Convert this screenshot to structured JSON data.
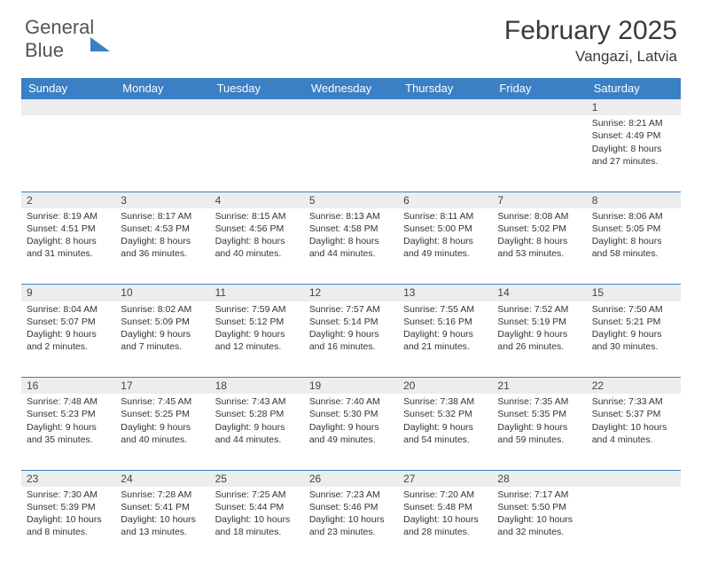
{
  "logo": {
    "word1": "General",
    "word2": "Blue"
  },
  "title": {
    "month": "February 2025",
    "location": "Vangazi, Latvia"
  },
  "weekdays": [
    "Sunday",
    "Monday",
    "Tuesday",
    "Wednesday",
    "Thursday",
    "Friday",
    "Saturday"
  ],
  "colors": {
    "header_bg": "#3b7fc4",
    "daynum_bg": "#ededed",
    "row_border": "#3b7fc4",
    "text": "#333333",
    "title_text": "#3a3a3a"
  },
  "fonts": {
    "title_size_pt": 22,
    "location_size_pt": 13,
    "weekday_size_pt": 10,
    "body_size_pt": 8
  },
  "weeks": [
    [
      null,
      null,
      null,
      null,
      null,
      null,
      {
        "n": "1",
        "sunrise": "Sunrise: 8:21 AM",
        "sunset": "Sunset: 4:49 PM",
        "day1": "Daylight: 8 hours",
        "day2": "and 27 minutes."
      }
    ],
    [
      {
        "n": "2",
        "sunrise": "Sunrise: 8:19 AM",
        "sunset": "Sunset: 4:51 PM",
        "day1": "Daylight: 8 hours",
        "day2": "and 31 minutes."
      },
      {
        "n": "3",
        "sunrise": "Sunrise: 8:17 AM",
        "sunset": "Sunset: 4:53 PM",
        "day1": "Daylight: 8 hours",
        "day2": "and 36 minutes."
      },
      {
        "n": "4",
        "sunrise": "Sunrise: 8:15 AM",
        "sunset": "Sunset: 4:56 PM",
        "day1": "Daylight: 8 hours",
        "day2": "and 40 minutes."
      },
      {
        "n": "5",
        "sunrise": "Sunrise: 8:13 AM",
        "sunset": "Sunset: 4:58 PM",
        "day1": "Daylight: 8 hours",
        "day2": "and 44 minutes."
      },
      {
        "n": "6",
        "sunrise": "Sunrise: 8:11 AM",
        "sunset": "Sunset: 5:00 PM",
        "day1": "Daylight: 8 hours",
        "day2": "and 49 minutes."
      },
      {
        "n": "7",
        "sunrise": "Sunrise: 8:08 AM",
        "sunset": "Sunset: 5:02 PM",
        "day1": "Daylight: 8 hours",
        "day2": "and 53 minutes."
      },
      {
        "n": "8",
        "sunrise": "Sunrise: 8:06 AM",
        "sunset": "Sunset: 5:05 PM",
        "day1": "Daylight: 8 hours",
        "day2": "and 58 minutes."
      }
    ],
    [
      {
        "n": "9",
        "sunrise": "Sunrise: 8:04 AM",
        "sunset": "Sunset: 5:07 PM",
        "day1": "Daylight: 9 hours",
        "day2": "and 2 minutes."
      },
      {
        "n": "10",
        "sunrise": "Sunrise: 8:02 AM",
        "sunset": "Sunset: 5:09 PM",
        "day1": "Daylight: 9 hours",
        "day2": "and 7 minutes."
      },
      {
        "n": "11",
        "sunrise": "Sunrise: 7:59 AM",
        "sunset": "Sunset: 5:12 PM",
        "day1": "Daylight: 9 hours",
        "day2": "and 12 minutes."
      },
      {
        "n": "12",
        "sunrise": "Sunrise: 7:57 AM",
        "sunset": "Sunset: 5:14 PM",
        "day1": "Daylight: 9 hours",
        "day2": "and 16 minutes."
      },
      {
        "n": "13",
        "sunrise": "Sunrise: 7:55 AM",
        "sunset": "Sunset: 5:16 PM",
        "day1": "Daylight: 9 hours",
        "day2": "and 21 minutes."
      },
      {
        "n": "14",
        "sunrise": "Sunrise: 7:52 AM",
        "sunset": "Sunset: 5:19 PM",
        "day1": "Daylight: 9 hours",
        "day2": "and 26 minutes."
      },
      {
        "n": "15",
        "sunrise": "Sunrise: 7:50 AM",
        "sunset": "Sunset: 5:21 PM",
        "day1": "Daylight: 9 hours",
        "day2": "and 30 minutes."
      }
    ],
    [
      {
        "n": "16",
        "sunrise": "Sunrise: 7:48 AM",
        "sunset": "Sunset: 5:23 PM",
        "day1": "Daylight: 9 hours",
        "day2": "and 35 minutes."
      },
      {
        "n": "17",
        "sunrise": "Sunrise: 7:45 AM",
        "sunset": "Sunset: 5:25 PM",
        "day1": "Daylight: 9 hours",
        "day2": "and 40 minutes."
      },
      {
        "n": "18",
        "sunrise": "Sunrise: 7:43 AM",
        "sunset": "Sunset: 5:28 PM",
        "day1": "Daylight: 9 hours",
        "day2": "and 44 minutes."
      },
      {
        "n": "19",
        "sunrise": "Sunrise: 7:40 AM",
        "sunset": "Sunset: 5:30 PM",
        "day1": "Daylight: 9 hours",
        "day2": "and 49 minutes."
      },
      {
        "n": "20",
        "sunrise": "Sunrise: 7:38 AM",
        "sunset": "Sunset: 5:32 PM",
        "day1": "Daylight: 9 hours",
        "day2": "and 54 minutes."
      },
      {
        "n": "21",
        "sunrise": "Sunrise: 7:35 AM",
        "sunset": "Sunset: 5:35 PM",
        "day1": "Daylight: 9 hours",
        "day2": "and 59 minutes."
      },
      {
        "n": "22",
        "sunrise": "Sunrise: 7:33 AM",
        "sunset": "Sunset: 5:37 PM",
        "day1": "Daylight: 10 hours",
        "day2": "and 4 minutes."
      }
    ],
    [
      {
        "n": "23",
        "sunrise": "Sunrise: 7:30 AM",
        "sunset": "Sunset: 5:39 PM",
        "day1": "Daylight: 10 hours",
        "day2": "and 8 minutes."
      },
      {
        "n": "24",
        "sunrise": "Sunrise: 7:28 AM",
        "sunset": "Sunset: 5:41 PM",
        "day1": "Daylight: 10 hours",
        "day2": "and 13 minutes."
      },
      {
        "n": "25",
        "sunrise": "Sunrise: 7:25 AM",
        "sunset": "Sunset: 5:44 PM",
        "day1": "Daylight: 10 hours",
        "day2": "and 18 minutes."
      },
      {
        "n": "26",
        "sunrise": "Sunrise: 7:23 AM",
        "sunset": "Sunset: 5:46 PM",
        "day1": "Daylight: 10 hours",
        "day2": "and 23 minutes."
      },
      {
        "n": "27",
        "sunrise": "Sunrise: 7:20 AM",
        "sunset": "Sunset: 5:48 PM",
        "day1": "Daylight: 10 hours",
        "day2": "and 28 minutes."
      },
      {
        "n": "28",
        "sunrise": "Sunrise: 7:17 AM",
        "sunset": "Sunset: 5:50 PM",
        "day1": "Daylight: 10 hours",
        "day2": "and 32 minutes."
      },
      null
    ]
  ]
}
